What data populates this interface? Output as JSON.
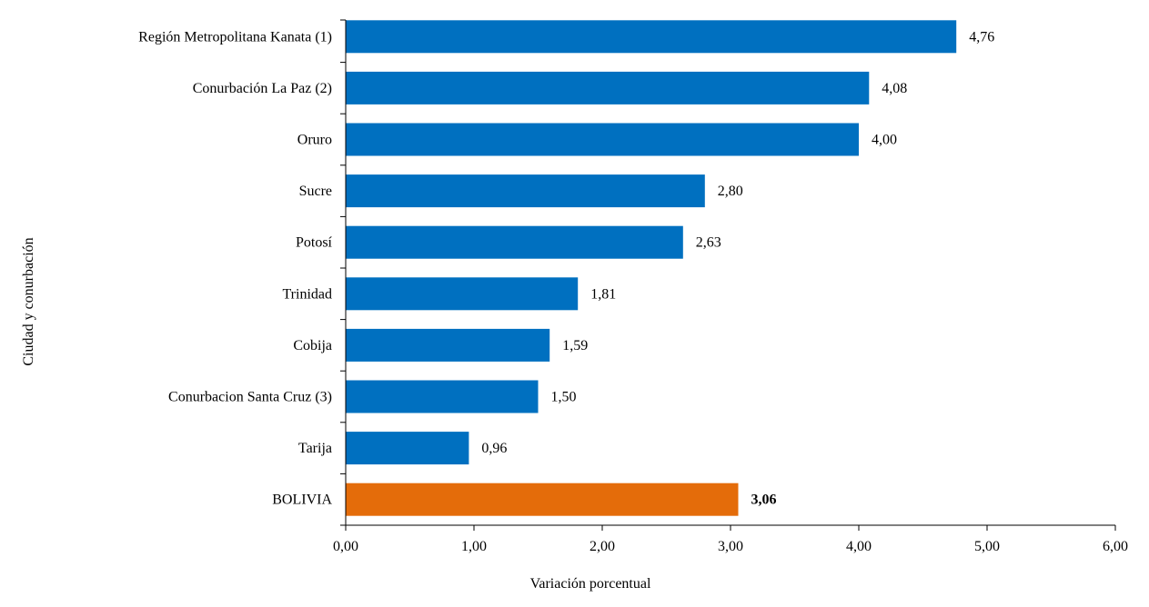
{
  "chart_data": {
    "type": "bar",
    "orientation": "horizontal",
    "xlabel": "Variación porcentual",
    "ylabel": "Ciudad y conurbación",
    "xlim": [
      0,
      6
    ],
    "x_ticks": [
      "0,00",
      "1,00",
      "2,00",
      "3,00",
      "4,00",
      "5,00",
      "6,00"
    ],
    "grid": false,
    "categories": [
      "Región Metropolitana Kanata (1)",
      "Conurbación La Paz (2)",
      "Oruro",
      "Sucre",
      "Potosí",
      "Trinidad",
      "Cobija",
      "Conurbacion Santa Cruz (3)",
      "Tarija",
      "BOLIVIA"
    ],
    "values": [
      4.76,
      4.08,
      4.0,
      2.8,
      2.63,
      1.81,
      1.59,
      1.5,
      0.96,
      3.06
    ],
    "value_labels": [
      "4,76",
      "4,08",
      "4,00",
      "2,80",
      "2,63",
      "1,81",
      "1,59",
      "1,50",
      "0,96",
      "3,06"
    ],
    "bar_color": "#0070C0",
    "highlight_color": "#E46C0A",
    "highlight_category": "BOLIVIA"
  }
}
